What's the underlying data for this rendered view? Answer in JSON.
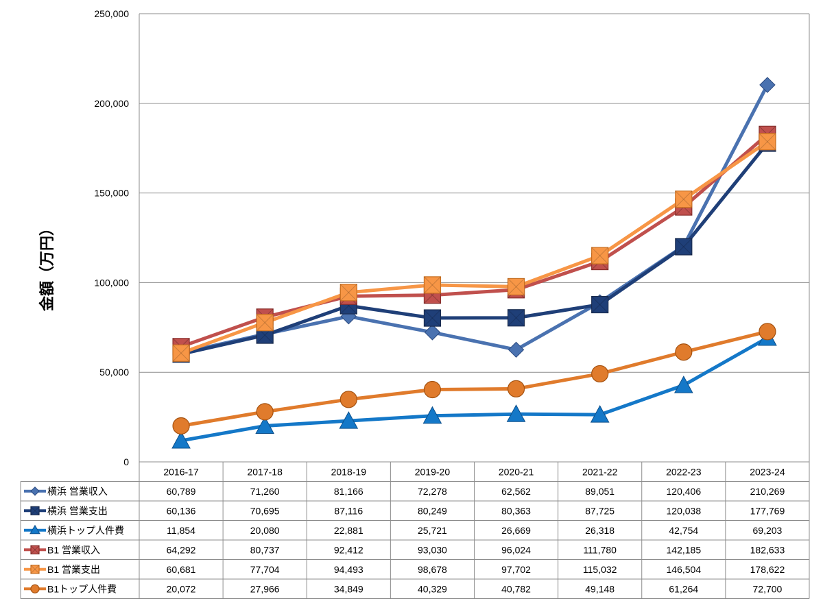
{
  "chart_data": {
    "type": "line",
    "title": "",
    "xlabel": "",
    "ylabel": "金額（万円）",
    "ylim": [
      0,
      250000
    ],
    "yticks": [
      "0",
      "50,000",
      "100,000",
      "150,000",
      "200,000",
      "250,000"
    ],
    "grid": true,
    "legend": "data-table-left",
    "categories": [
      "2016-17",
      "2017-18",
      "2018-19",
      "2019-20",
      "2020-21",
      "2021-22",
      "2022-23",
      "2023-24"
    ],
    "series": [
      {
        "name": "横浜 営業収入",
        "color": "#4a72b0",
        "marker": "diamond",
        "values": [
          60789,
          71260,
          81166,
          72278,
          62562,
          89051,
          120406,
          210269
        ],
        "labels": [
          "60,789",
          "71,260",
          "81,166",
          "72,278",
          "62,562",
          "89,051",
          "120,406",
          "210,269"
        ]
      },
      {
        "name": "横浜 営業支出",
        "color": "#1f3f78",
        "marker": "square",
        "values": [
          60136,
          70695,
          87116,
          80249,
          80363,
          87725,
          120038,
          177769
        ],
        "labels": [
          "60,136",
          "70,695",
          "87,116",
          "80,249",
          "80,363",
          "87,725",
          "120,038",
          "177,769"
        ]
      },
      {
        "name": "横浜トップ人件費",
        "color": "#1478c8",
        "marker": "triangle",
        "values": [
          11854,
          20080,
          22881,
          25721,
          26669,
          26318,
          42754,
          69203
        ],
        "labels": [
          "11,854",
          "20,080",
          "22,881",
          "25,721",
          "26,669",
          "26,318",
          "42,754",
          "69,203"
        ]
      },
      {
        "name": "B1 営業収入",
        "color": "#c0504d",
        "marker": "x-square",
        "values": [
          64292,
          80737,
          92412,
          93030,
          96024,
          111780,
          142185,
          182633
        ],
        "labels": [
          "64,292",
          "80,737",
          "92,412",
          "93,030",
          "96,024",
          "111,780",
          "142,185",
          "182,633"
        ]
      },
      {
        "name": "B1 営業支出",
        "color": "#f79646",
        "marker": "square",
        "values": [
          60681,
          77704,
          94493,
          98678,
          97702,
          115032,
          146504,
          178622
        ],
        "labels": [
          "60,681",
          "77,704",
          "94,493",
          "98,678",
          "97,702",
          "115,032",
          "146,504",
          "178,622"
        ]
      },
      {
        "name": "B1トップ人件費",
        "color": "#e07b2c",
        "marker": "circle",
        "values": [
          20072,
          27966,
          34849,
          40329,
          40782,
          49148,
          61264,
          72700
        ],
        "labels": [
          "20,072",
          "27,966",
          "34,849",
          "40,329",
          "40,782",
          "49,148",
          "61,264",
          "72,700"
        ]
      }
    ]
  }
}
